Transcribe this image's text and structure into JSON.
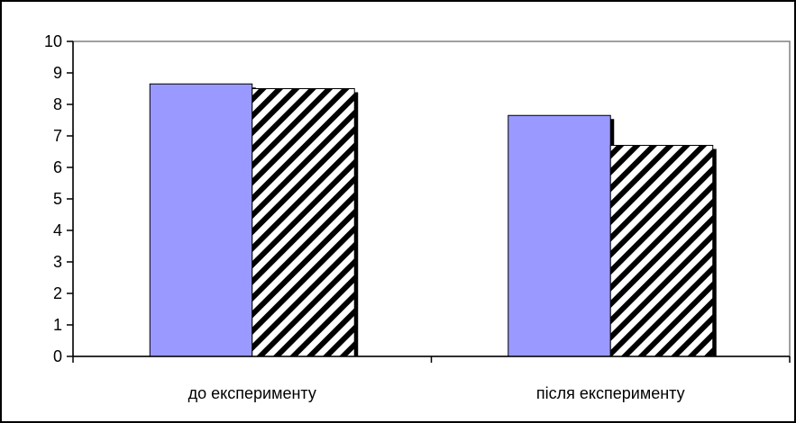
{
  "chart_data": {
    "type": "bar",
    "categories": [
      "до експерименту",
      "після експерименту"
    ],
    "series": [
      {
        "values": [
          8.65,
          7.65
        ],
        "fill": "#9999ff",
        "pattern": "solid"
      },
      {
        "values": [
          8.5,
          6.7
        ],
        "fill": "#ffffff",
        "pattern": "diagonal-hatch"
      }
    ],
    "ylim": [
      0,
      10
    ],
    "yticks": [
      "0",
      "1",
      "2",
      "3",
      "4",
      "5",
      "6",
      "7",
      "8",
      "9",
      "10"
    ],
    "grid": false,
    "legend": false,
    "colors": {
      "plot_border": "#808080",
      "axis": "#000000",
      "outer_border": "#000000"
    }
  }
}
